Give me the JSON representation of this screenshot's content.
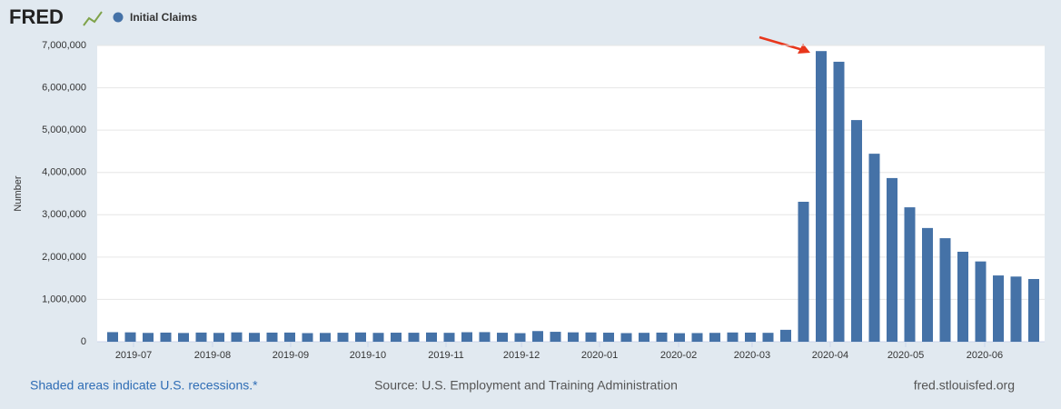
{
  "brand": "FRED",
  "footer": {
    "left": "Shaded areas indicate U.S. recessions.*",
    "center": "Source: U.S. Employment and Training Administration",
    "right": "fred.stlouisfed.org"
  },
  "chart_data": {
    "type": "bar",
    "ylabel": "Number",
    "categories": [
      null,
      null,
      null,
      null,
      null,
      null,
      null,
      null,
      null,
      null,
      null,
      null,
      null,
      null,
      null,
      null,
      null,
      null,
      null,
      null,
      null,
      null,
      null,
      null,
      null,
      null,
      null,
      null,
      null,
      null,
      null,
      null,
      null,
      null,
      null,
      null,
      null,
      null,
      null,
      null,
      null,
      null,
      null,
      null,
      null,
      null,
      null,
      null,
      null,
      null,
      null,
      null,
      null
    ],
    "series": [
      {
        "name": "Initial Claims",
        "color": "#4572a7",
        "values": [
          227000,
          222000,
          209000,
          216000,
          207000,
          217000,
          209000,
          221000,
          210000,
          216000,
          217000,
          204000,
          208000,
          213000,
          219000,
          210000,
          214000,
          213000,
          218000,
          211000,
          225000,
          227000,
          213000,
          203000,
          252000,
          235000,
          222000,
          220000,
          214000,
          204000,
          211000,
          216000,
          202000,
          205000,
          210000,
          219000,
          216000,
          211000,
          282000,
          3307000,
          6867000,
          6615000,
          5237000,
          4442000,
          3867000,
          3176000,
          2687000,
          2446000,
          2126000,
          1897000,
          1566000,
          1540000,
          1482000
        ]
      }
    ],
    "ylim": [
      0,
      7000000
    ],
    "yticks": [
      0,
      {
        "value": 1000000,
        "label": "1,000,000"
      },
      {
        "value": 2000000,
        "label": "2,000,000"
      },
      {
        "value": 3000000,
        "label": "3,000,000"
      },
      {
        "value": 4000000,
        "label": "4,000,000"
      },
      {
        "value": 5000000,
        "label": "5,000,000"
      },
      {
        "value": 6000000,
        "label": "6,000,000"
      },
      {
        "value": 7000000,
        "label": "7,000,000"
      }
    ],
    "xticks": [
      {
        "value": 1.18,
        "label": "2019-07"
      },
      {
        "value": 5.64,
        "label": "2019-08"
      },
      {
        "value": 10.05,
        "label": "2019-09"
      },
      {
        "value": 14.41,
        "label": "2019-10"
      },
      {
        "value": 18.82,
        "label": "2019-11"
      },
      {
        "value": 23.08,
        "label": "2019-12"
      },
      {
        "value": 27.49,
        "label": "2020-01"
      },
      {
        "value": 31.95,
        "label": "2020-02"
      },
      {
        "value": 36.1,
        "label": "2020-03"
      },
      {
        "value": 40.51,
        "label": "2020-04"
      },
      {
        "value": 44.77,
        "label": "2020-05"
      },
      {
        "value": 49.23,
        "label": "2020-06"
      }
    ],
    "grid": true
  }
}
